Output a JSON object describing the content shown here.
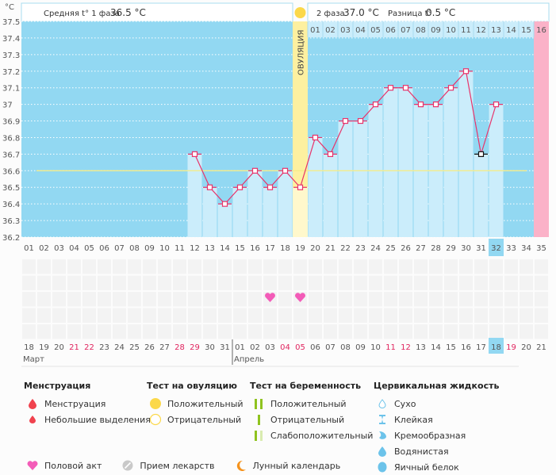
{
  "chart_data": {
    "type": "bar",
    "ylabel": "°C",
    "yticks": [
      "37.5",
      "37.4",
      "37.3",
      "37.2",
      "37.1",
      "37",
      "36.9",
      "36.8",
      "36.7",
      "36.6",
      "36.5",
      "36.4",
      "36.3",
      "36.2"
    ],
    "ylim": [
      36.2,
      37.5
    ],
    "cycle_days": [
      "01",
      "02",
      "03",
      "04",
      "05",
      "06",
      "07",
      "08",
      "09",
      "10",
      "11",
      "12",
      "13",
      "14",
      "15",
      "16",
      "17",
      "18",
      "19",
      "20",
      "21",
      "22",
      "23",
      "24",
      "25",
      "26",
      "27",
      "28",
      "29",
      "30",
      "31",
      "32",
      "33",
      "34",
      "35"
    ],
    "temperatures": [
      null,
      null,
      null,
      null,
      null,
      null,
      null,
      null,
      null,
      null,
      null,
      36.7,
      36.5,
      36.4,
      36.5,
      36.6,
      36.5,
      36.6,
      36.5,
      36.8,
      36.7,
      36.9,
      36.9,
      37.0,
      37.1,
      37.1,
      37.0,
      37.0,
      37.1,
      37.2,
      36.7,
      37.0,
      null,
      null,
      null
    ],
    "coverline": 36.6,
    "ovulation_day": 19,
    "ovulation_label": "ОВУЛЯЦИЯ",
    "current_cycle_day": 32,
    "highlighted_point_day": 31,
    "expected_period_day": 35,
    "phase2_days": [
      "01",
      "02",
      "03",
      "04",
      "05",
      "06",
      "07",
      "08",
      "09",
      "10",
      "11",
      "12",
      "13",
      "14",
      "15",
      "16"
    ],
    "header": {
      "phase1_label": "Средняя t° 1 фаза",
      "phase1_value": "36.5 °C",
      "phase2_label": "2 фаза",
      "phase2_value": "37.0 °C",
      "diff_label": "Разница t°",
      "diff_value": "0.5 °C"
    },
    "intercourse_days": [
      17,
      19
    ],
    "calendar_dates": [
      "18",
      "19",
      "20",
      "21",
      "22",
      "23",
      "24",
      "25",
      "26",
      "27",
      "28",
      "29",
      "30",
      "31",
      "01",
      "02",
      "03",
      "04",
      "05",
      "06",
      "07",
      "08",
      "09",
      "10",
      "11",
      "12",
      "13",
      "14",
      "15",
      "16",
      "17",
      "18",
      "19",
      "20",
      "21"
    ],
    "weekend_indices": [
      3,
      4,
      10,
      11,
      17,
      18,
      24,
      25,
      32
    ],
    "today_index": 31,
    "months": [
      {
        "label": "Март",
        "start": 0
      },
      {
        "label": "Апрель",
        "start": 14
      }
    ]
  },
  "colors": {
    "bg_blue": "#92d8f2",
    "bar_light": "#cbedfb",
    "ovulation": "#fdf0a0",
    "period": "#fbb2c8",
    "line": "#e8336a",
    "coverline": "#f5ec8a",
    "today": "#92d8f2",
    "weekend": "#e0245e"
  },
  "legend": {
    "menstruation": {
      "title": "Менструация",
      "items": [
        "Менструация",
        "Небольшие выделения"
      ]
    },
    "ovulation_test": {
      "title": "Тест на овуляцию",
      "items": [
        "Положительный",
        "Отрицательный"
      ]
    },
    "pregnancy_test": {
      "title": "Тест на беременность",
      "items": [
        "Положительный",
        "Отрицательный",
        "Слабоположительный"
      ]
    },
    "cervical": {
      "title": "Цервикальная жидкость",
      "items": [
        "Сухо",
        "Клейкая",
        "Кремообразная",
        "Водянистая",
        "Яичный белок"
      ]
    },
    "bottom": [
      "Половой акт",
      "Прием лекарств",
      "Лунный календарь"
    ]
  }
}
